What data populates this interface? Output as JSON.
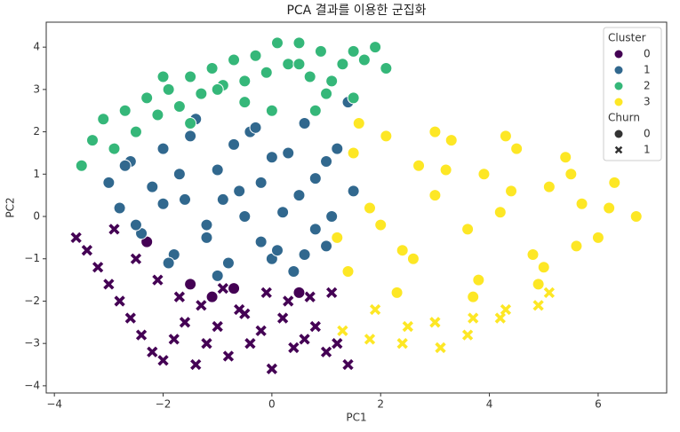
{
  "chart_data": {
    "type": "scatter",
    "title": "PCA 결과를 이용한 군집화",
    "x_label": "PC1",
    "y_label": "PC2",
    "xlim": [
      -4.15,
      7.26
    ],
    "ylim": [
      -4.17,
      4.59
    ],
    "xticks": [
      {
        "value": -4,
        "label": "−4"
      },
      {
        "value": -2,
        "label": "−2"
      },
      0,
      2,
      4,
      6
    ],
    "yticks": [
      {
        "value": -4,
        "label": "−4"
      },
      {
        "value": -3,
        "label": "−3"
      },
      {
        "value": -2,
        "label": "−2"
      },
      {
        "value": -1,
        "label": "−1"
      },
      0,
      1,
      2,
      3,
      4
    ],
    "legend": {
      "title": "Cluster",
      "loc": "upper right"
    },
    "marker_legend": {
      "title": "Churn",
      "labels": [
        "0",
        "1"
      ],
      "markers": [
        "circle",
        "x"
      ]
    },
    "series": [
      {
        "name": "0",
        "color": "#440154",
        "x": [
          -3.6,
          -3.4,
          -3.2,
          -3.0,
          -2.8,
          -2.6,
          -2.4,
          -2.2,
          -2.0,
          -1.8,
          -1.6,
          -1.4,
          -1.2,
          -1.0,
          -0.8,
          -0.6,
          -0.4,
          -0.2,
          0.0,
          0.2,
          0.4,
          0.6,
          0.8,
          1.0,
          1.2,
          1.4,
          -2.9,
          -2.5,
          -2.1,
          -1.7,
          -1.3,
          -0.9,
          -0.5,
          -0.1,
          0.3,
          0.7,
          1.1,
          -1.5,
          -0.7,
          0.5,
          -2.3,
          -1.1
        ],
        "y": [
          -0.5,
          -0.8,
          -1.2,
          -1.6,
          -2.0,
          -2.4,
          -2.8,
          -3.2,
          -3.4,
          -2.9,
          -2.5,
          -3.5,
          -3.0,
          -2.6,
          -3.3,
          -2.2,
          -3.0,
          -2.7,
          -3.6,
          -2.4,
          -3.1,
          -2.9,
          -2.6,
          -3.2,
          -3.0,
          -3.5,
          -0.3,
          -1.0,
          -1.5,
          -1.9,
          -2.1,
          -1.7,
          -2.3,
          -1.8,
          -2.0,
          -1.9,
          -1.8,
          -1.6,
          -1.7,
          -1.8,
          -0.6,
          -1.9
        ],
        "churn": [
          1,
          1,
          1,
          1,
          1,
          1,
          1,
          1,
          1,
          1,
          1,
          1,
          1,
          1,
          1,
          1,
          1,
          1,
          1,
          1,
          1,
          1,
          1,
          1,
          1,
          1,
          1,
          1,
          1,
          1,
          1,
          1,
          1,
          1,
          1,
          1,
          1,
          0,
          0,
          0,
          0,
          0
        ]
      },
      {
        "name": "1",
        "color": "#31688e",
        "x": [
          -3.0,
          -2.8,
          -2.6,
          -2.4,
          -2.2,
          -2.0,
          -1.8,
          -1.6,
          -1.4,
          -1.2,
          -1.0,
          -0.8,
          -0.6,
          -0.4,
          -0.2,
          0.0,
          0.2,
          0.4,
          0.6,
          0.8,
          1.0,
          1.2,
          1.4,
          -2.5,
          -2.0,
          -1.5,
          -1.0,
          -0.5,
          0.0,
          0.5,
          1.0,
          -1.7,
          -1.2,
          -0.7,
          -0.2,
          0.3,
          0.8,
          1.5,
          -1.9,
          -0.9,
          0.1,
          1.1,
          -2.7,
          -0.3,
          0.6
        ],
        "y": [
          0.8,
          0.2,
          1.3,
          -0.4,
          0.7,
          1.6,
          -0.9,
          0.4,
          2.3,
          -0.2,
          1.1,
          -1.1,
          0.6,
          2.0,
          -0.6,
          1.4,
          0.1,
          -1.3,
          2.2,
          0.9,
          -0.7,
          1.6,
          2.7,
          -0.2,
          0.3,
          1.9,
          -1.4,
          0.0,
          -1.0,
          0.5,
          1.3,
          1.0,
          -0.5,
          1.7,
          0.8,
          1.5,
          -0.3,
          0.6,
          -1.1,
          0.4,
          -0.8,
          0.0,
          1.2,
          2.1,
          -0.9
        ],
        "churn": [
          0,
          0,
          0,
          0,
          0,
          0,
          0,
          0,
          0,
          0,
          0,
          0,
          0,
          0,
          0,
          0,
          0,
          0,
          0,
          0,
          0,
          0,
          0,
          0,
          0,
          0,
          0,
          0,
          0,
          0,
          0,
          0,
          0,
          0,
          0,
          0,
          0,
          0,
          0,
          0,
          0,
          0,
          0,
          0,
          0
        ]
      },
      {
        "name": "2",
        "color": "#35b779",
        "x": [
          -3.5,
          -3.3,
          -3.1,
          -2.9,
          -2.7,
          -2.5,
          -2.3,
          -2.1,
          -1.9,
          -1.7,
          -1.5,
          -1.3,
          -1.1,
          -0.9,
          -0.7,
          -0.5,
          -0.3,
          -0.1,
          0.1,
          0.3,
          0.5,
          0.7,
          0.9,
          1.1,
          1.3,
          1.5,
          1.7,
          1.9,
          2.1,
          -2.0,
          -1.0,
          0.0,
          1.0,
          -1.5,
          -0.5,
          0.5,
          1.5,
          0.8
        ],
        "y": [
          1.2,
          1.8,
          2.3,
          1.6,
          2.5,
          2.0,
          2.8,
          2.4,
          3.0,
          2.6,
          3.3,
          2.9,
          3.5,
          3.1,
          3.7,
          3.2,
          3.8,
          3.4,
          4.1,
          3.6,
          4.1,
          3.3,
          3.9,
          3.2,
          3.6,
          3.9,
          3.7,
          4.0,
          3.5,
          3.3,
          3.0,
          2.5,
          2.9,
          2.2,
          2.7,
          3.6,
          2.8,
          2.5
        ],
        "churn": [
          0,
          0,
          0,
          0,
          0,
          0,
          0,
          0,
          0,
          0,
          0,
          0,
          0,
          0,
          0,
          0,
          0,
          0,
          0,
          0,
          0,
          0,
          0,
          0,
          0,
          0,
          0,
          0,
          0,
          0,
          0,
          0,
          0,
          0,
          0,
          0,
          0,
          0
        ]
      },
      {
        "name": "3",
        "color": "#fde725",
        "x": [
          1.2,
          1.5,
          1.8,
          2.1,
          2.4,
          2.7,
          3.0,
          3.3,
          3.6,
          3.9,
          4.2,
          4.5,
          4.8,
          5.1,
          5.4,
          5.7,
          6.0,
          6.3,
          6.7,
          1.4,
          2.0,
          2.6,
          3.2,
          3.8,
          4.4,
          5.0,
          5.6,
          6.2,
          1.6,
          2.3,
          3.0,
          3.7,
          4.3,
          4.9,
          5.5,
          1.3,
          1.9,
          2.5,
          3.1,
          3.7,
          4.3,
          4.9,
          1.8,
          2.4,
          3.0,
          3.6,
          4.2,
          5.1
        ],
        "y": [
          -0.5,
          1.5,
          0.2,
          1.9,
          -0.8,
          1.2,
          0.5,
          1.8,
          -0.3,
          1.0,
          0.1,
          1.6,
          -0.9,
          0.7,
          1.4,
          0.3,
          -0.5,
          0.8,
          0.0,
          -1.3,
          -0.2,
          -1.0,
          1.1,
          -1.5,
          0.6,
          -1.2,
          -0.7,
          0.2,
          2.2,
          -1.8,
          2.0,
          -1.9,
          1.9,
          -1.6,
          1.0,
          -2.7,
          -2.2,
          -2.6,
          -3.1,
          -2.4,
          -2.2,
          -2.1,
          -2.9,
          -3.0,
          -2.5,
          -2.8,
          -2.4,
          -1.8
        ],
        "churn": [
          0,
          0,
          0,
          0,
          0,
          0,
          0,
          0,
          0,
          0,
          0,
          0,
          0,
          0,
          0,
          0,
          0,
          0,
          0,
          0,
          0,
          0,
          0,
          0,
          0,
          0,
          0,
          0,
          0,
          0,
          0,
          0,
          0,
          0,
          0,
          1,
          1,
          1,
          1,
          1,
          1,
          1,
          1,
          1,
          1,
          1,
          1,
          1
        ]
      }
    ]
  }
}
